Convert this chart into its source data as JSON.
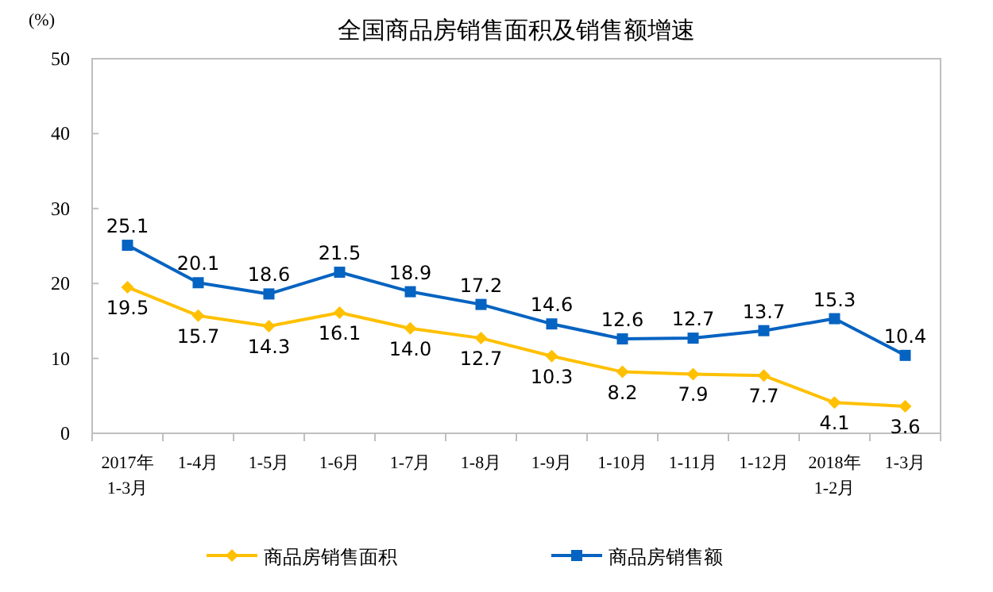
{
  "chart_data": {
    "type": "line",
    "title": "全国商品房销售面积及销售额增速",
    "ylabel": "(%)",
    "categories": [
      "2017年\n1-3月",
      "1-4月",
      "1-5月",
      "1-6月",
      "1-7月",
      "1-8月",
      "1-9月",
      "1-10月",
      "1-11月",
      "1-12月",
      "2018年\n1-2月",
      "1-3月"
    ],
    "series": [
      {
        "name": "商品房销售面积",
        "color": "#ffc000",
        "marker": "diamond",
        "values": [
          19.5,
          15.7,
          14.3,
          16.1,
          14.0,
          12.7,
          10.3,
          8.2,
          7.9,
          7.7,
          4.1,
          3.6
        ],
        "value_labels": [
          "19.5",
          "15.7",
          "14.3",
          "16.1",
          "14.0",
          "12.7",
          "10.3",
          "8.2",
          "7.9",
          "7.7",
          "4.1",
          "3.6"
        ]
      },
      {
        "name": "商品房销售额",
        "color": "#0563c1",
        "marker": "square",
        "values": [
          25.1,
          20.1,
          18.6,
          21.5,
          18.9,
          17.2,
          14.6,
          12.6,
          12.7,
          13.7,
          15.3,
          10.4
        ]
      }
    ],
    "ylim": [
      0,
      50
    ],
    "yticks": [
      0,
      10,
      20,
      30,
      40,
      50
    ],
    "grid": false,
    "legend": "bottom",
    "data_labels": true
  }
}
